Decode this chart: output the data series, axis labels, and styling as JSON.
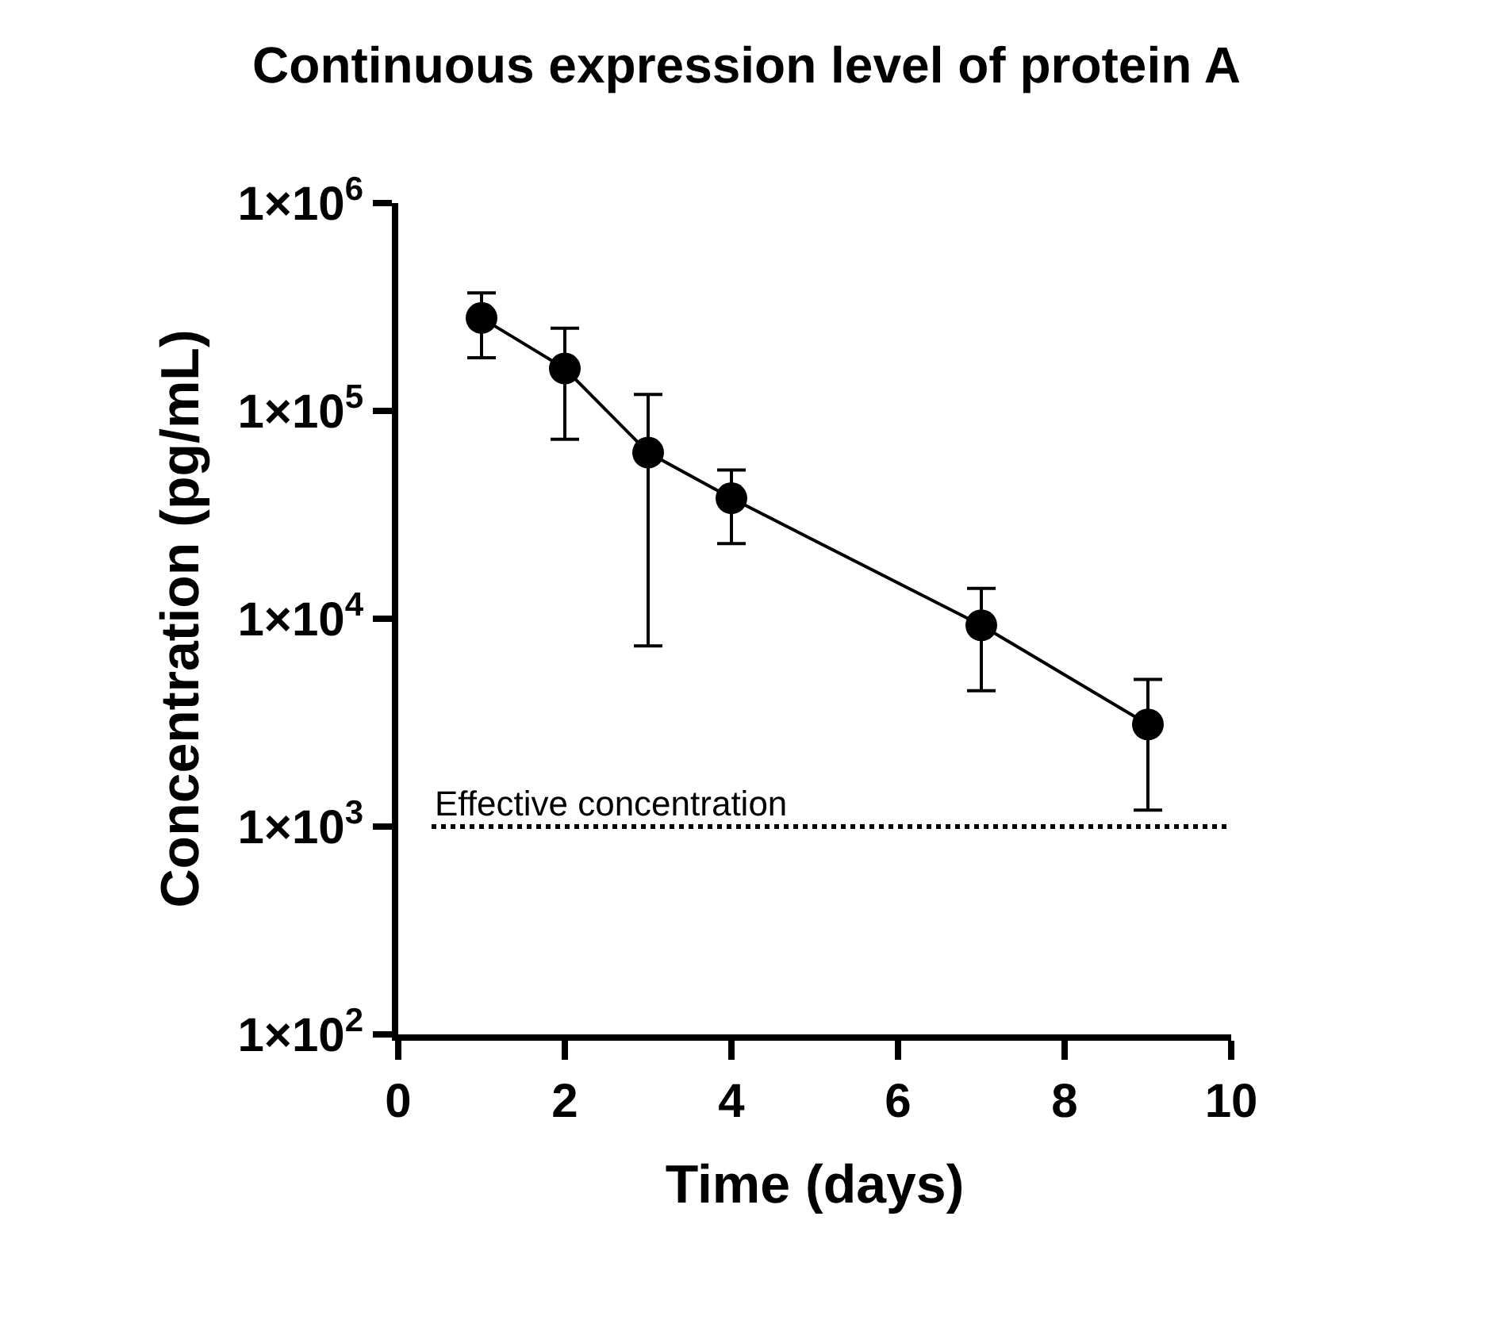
{
  "chart_data": {
    "type": "line",
    "title": "Continuous expression level of protein A",
    "xlabel": "Time (days)",
    "ylabel": "Concentration (pg/mL)",
    "x": [
      1,
      2,
      3,
      4,
      7,
      9
    ],
    "series": [
      {
        "color": "#000000",
        "values": [
          280000,
          160000,
          63000,
          38000,
          9300,
          3100
        ],
        "errors": [
          [
            180000,
            370000
          ],
          [
            73000,
            250000
          ],
          [
            7400,
            120000
          ],
          [
            23000,
            52000
          ],
          [
            4500,
            14000
          ],
          [
            1200,
            5100
          ]
        ]
      }
    ],
    "log": "y",
    "xlim": [
      0,
      10
    ],
    "xticks": [
      0,
      2,
      4,
      6,
      8,
      10
    ],
    "ylim": [
      100,
      1000000
    ],
    "yticks": [
      {
        "value": 100,
        "label": "1×10$^{2}$"
      },
      {
        "value": 1000,
        "label": "1×10$^{3}$"
      },
      {
        "value": 10000,
        "label": "1×10$^{4}$"
      },
      {
        "value": 100000,
        "label": "1×10$^{5}$"
      },
      {
        "value": 1000000,
        "label": "1×10$^{6}$"
      }
    ],
    "ref_lines": [
      {
        "axis": "y",
        "value": 1000,
        "label": "Effective concentration",
        "line_style": "dotted",
        "color": "#000000"
      }
    ],
    "legend": false,
    "marker": "circle",
    "line_style": "solid"
  }
}
